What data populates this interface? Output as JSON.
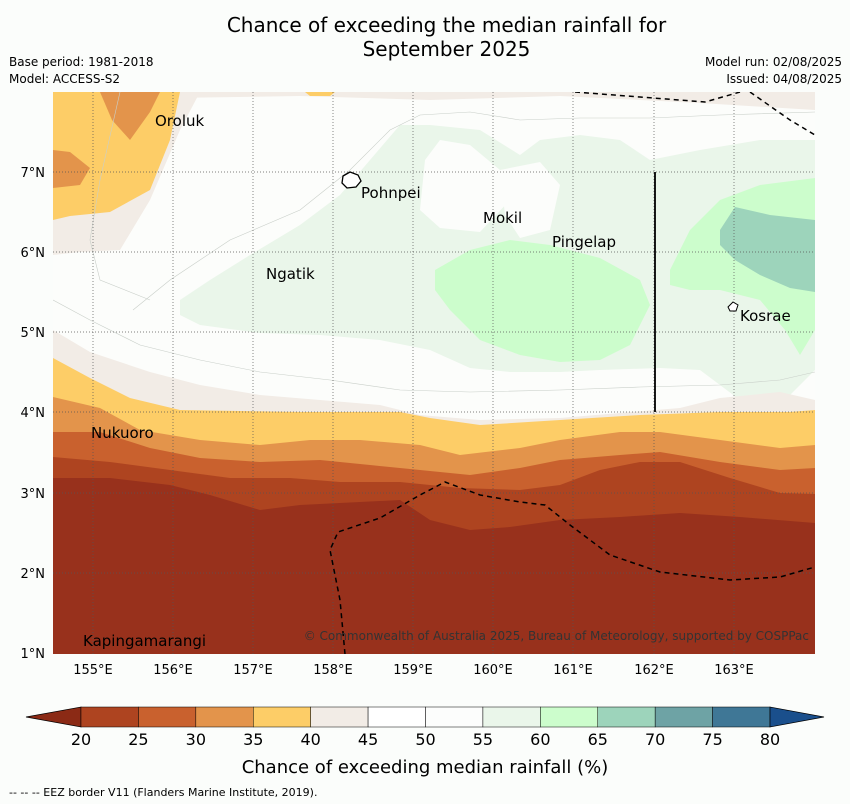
{
  "title_line1": "Chance of exceeding the median rainfall for",
  "title_line2": "September 2025",
  "meta_left": {
    "base_period": "Base period: 1981-2018",
    "model": "Model: ACCESS-S2"
  },
  "meta_right": {
    "model_run": "Model run: 02/08/2025",
    "issued": "Issued: 04/08/2025"
  },
  "map": {
    "lat_labels": [
      "7°N",
      "6°N",
      "5°N",
      "4°N",
      "3°N",
      "2°N",
      "1°N"
    ],
    "lon_labels": [
      "155°E",
      "156°E",
      "157°E",
      "158°E",
      "159°E",
      "160°E",
      "161°E",
      "162°E",
      "163°E"
    ],
    "places": [
      "Oroluk",
      "Pohnpei",
      "Mokil",
      "Pingelap",
      "Ngatik",
      "Kosrae",
      "Nukuoro",
      "Kapingamarangi"
    ],
    "copyright": "© Commonwealth of Australia 2025, Bureau of Meteorology, supported by COSPPac"
  },
  "colorbar": {
    "ticks": [
      "20",
      "25",
      "30",
      "35",
      "40",
      "45",
      "50",
      "55",
      "60",
      "65",
      "70",
      "75",
      "80"
    ],
    "colors": [
      "#8b2a15",
      "#ae4420",
      "#c9612e",
      "#e3944b",
      "#fdcd67",
      "#f2ece6",
      "#ffffff",
      "#fcfdfc",
      "#eaf6ea",
      "#ccfdcc",
      "#9dd4bb",
      "#6ea3a5",
      "#3f7796",
      "#1a4f8c"
    ],
    "label": "Chance of exceeding median rainfall (%)"
  },
  "footer": "--  --  -- EEZ border V11 (Flanders Marine Institute, 2019)."
}
